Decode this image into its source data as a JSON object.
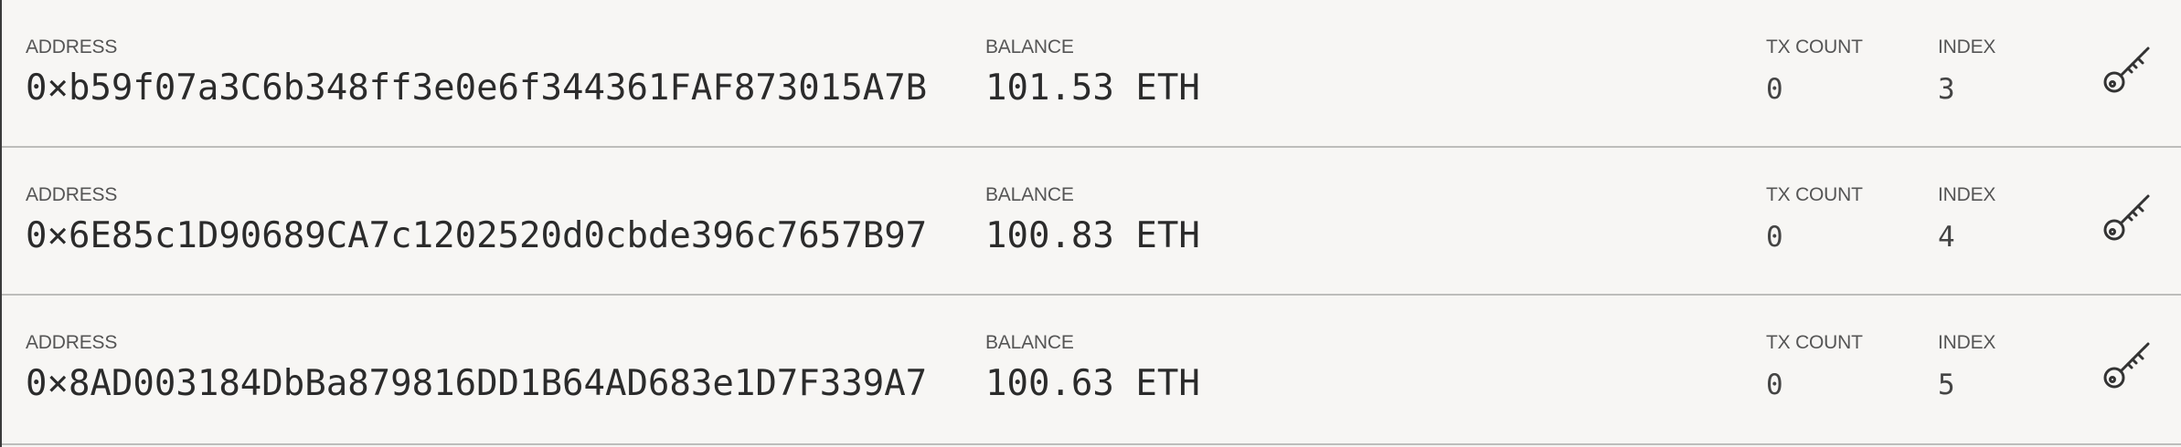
{
  "accounts": [
    {
      "address_label": "ADDRESS",
      "address": "0×b59f07a3C6b348ff3e0e6f344361FAF873015A7B",
      "balance_label": "BALANCE",
      "balance": "101.53 ETH",
      "tx_count_label": "TX COUNT",
      "tx_count": "0",
      "index_label": "INDEX",
      "index": "3",
      "action_icon": "key-icon"
    },
    {
      "address_label": "ADDRESS",
      "address": "0×6E85c1D90689CA7c1202520d0cbde396c7657B97",
      "balance_label": "BALANCE",
      "balance": "100.83 ETH",
      "tx_count_label": "TX COUNT",
      "tx_count": "0",
      "index_label": "INDEX",
      "index": "4",
      "action_icon": "key-icon"
    },
    {
      "address_label": "ADDRESS",
      "address": "0×8AD003184DbBa879816DD1B64AD683e1D7F339A7",
      "balance_label": "BALANCE",
      "balance": "100.63 ETH",
      "tx_count_label": "TX COUNT",
      "tx_count": "0",
      "index_label": "INDEX",
      "index": "5",
      "action_icon": "key-icon"
    }
  ],
  "colors": {
    "background": "#f7f6f4",
    "row_divider": "#bdbdbb",
    "label_text": "#555555",
    "value_text": "#2b2b2b"
  }
}
